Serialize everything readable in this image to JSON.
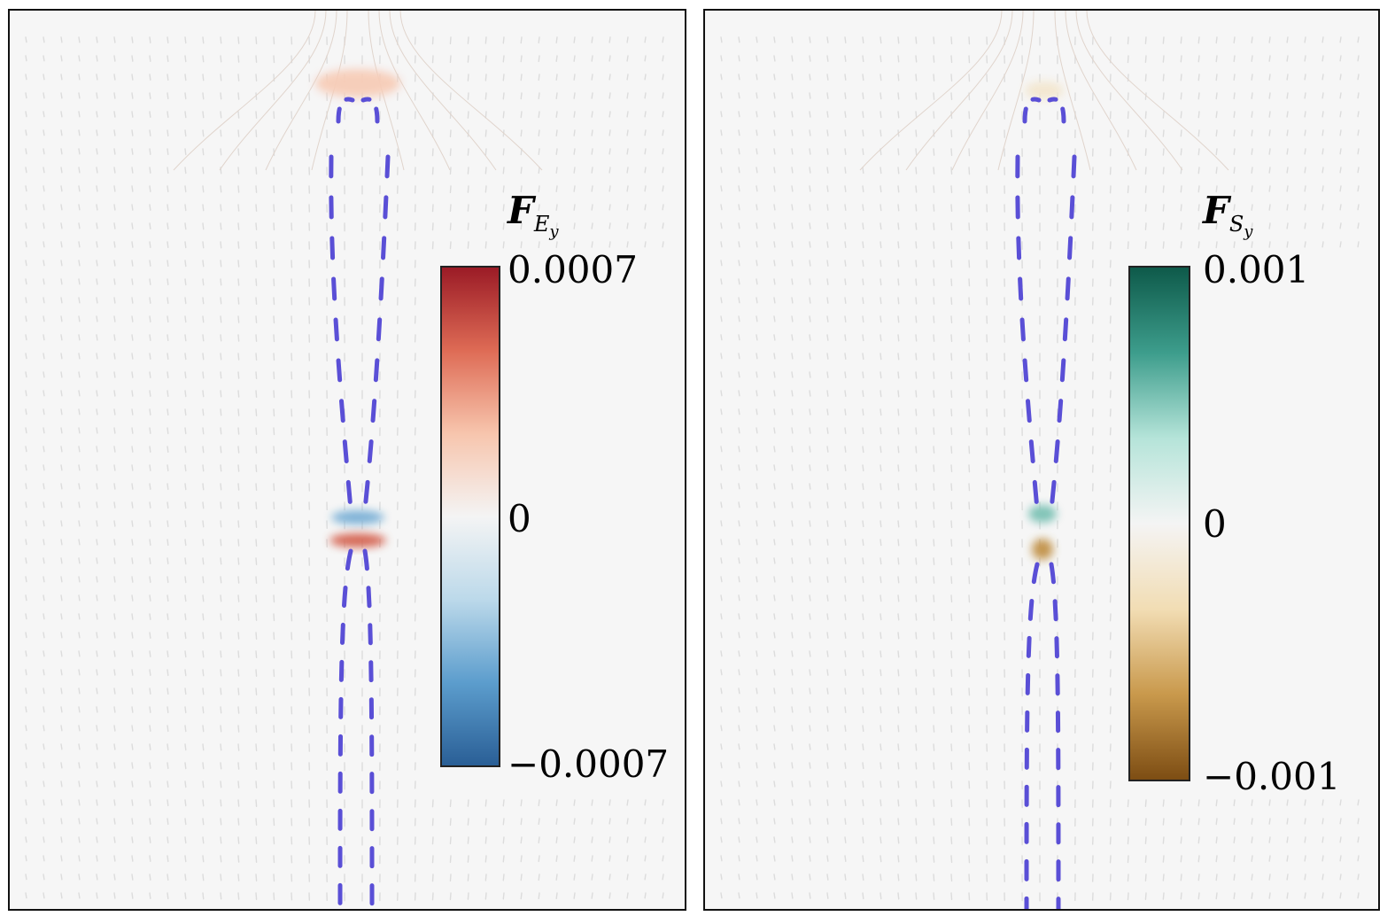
{
  "chart_data": [
    {
      "type": "heatmap",
      "colorbar": {
        "title_main": "F",
        "title_sub": "E",
        "title_subsub": "y",
        "min": -0.0007,
        "max": 0.0007,
        "tick_labels": [
          "0.0007",
          "0",
          "−0.0007"
        ],
        "colors": [
          "#9b1b26",
          "#de6b55",
          "#f7c5ad",
          "#f4f4f4",
          "#bcd9ea",
          "#5c9dcd",
          "#2a5f96"
        ]
      },
      "vector_field_color": "#5a4fd6",
      "hotspots": [
        {
          "name": "top",
          "value": 0.0002
        },
        {
          "name": "upper-tip",
          "value": -0.0004
        },
        {
          "name": "lower-tip",
          "value": 0.0005
        }
      ]
    },
    {
      "type": "heatmap",
      "colorbar": {
        "title_main": "F",
        "title_sub": "S",
        "title_subsub": "y",
        "min": -0.001,
        "max": 0.001,
        "tick_labels": [
          "0.001",
          "0",
          "−0.001"
        ],
        "colors": [
          "#0e5a4a",
          "#3d9d8c",
          "#b5e4d9",
          "#f4f4f4",
          "#f2ddb4",
          "#c9994c",
          "#7d4d13"
        ]
      },
      "vector_field_color": "#5a4fd6",
      "hotspots": [
        {
          "name": "top",
          "value": -0.0002
        },
        {
          "name": "upper-tip",
          "value": 0.0005
        },
        {
          "name": "lower-tip",
          "value": -0.0007
        }
      ]
    }
  ]
}
